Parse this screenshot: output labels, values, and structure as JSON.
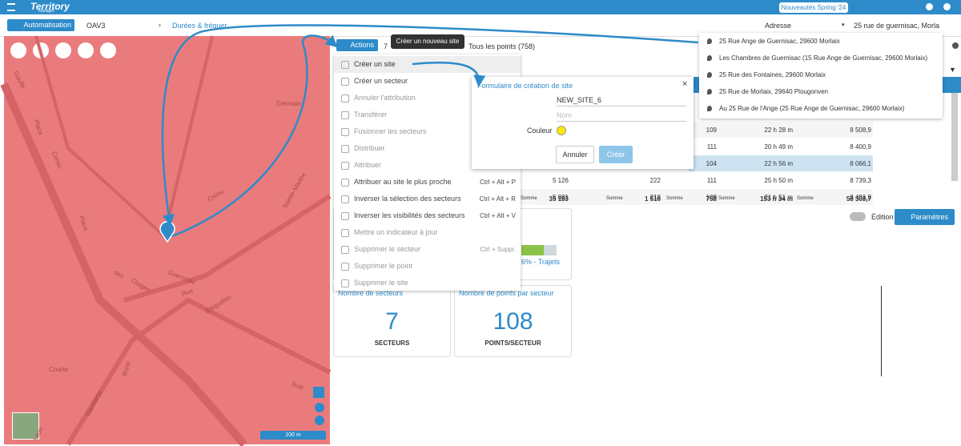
{
  "topbar": {
    "logo": "Territory",
    "logo_sub": "manager",
    "news_button": "Nouveautés Spring '24"
  },
  "toolbar": {
    "automation": "Automatisation",
    "project": "OAV3",
    "breadcrumb": "Durées & fréquer",
    "search_type": "Adresse",
    "search_value": "25 rue de guernisac, Morla"
  },
  "address_suggestions": [
    "25 Rue Ange de Guernisac, 29600 Morlaix",
    "Les Chambres de Guernisac (15 Rue Ange de Guernisac, 29600 Morlaix)",
    "25 Rue des Fontaines, 29600 Morlaix",
    "25 Rue de Morlaix, 29640 Plougonven",
    "Au 25 Rue de l'Ange (25 Rue Ange de Guernisac, 29600 Morlaix)"
  ],
  "map": {
    "labels": [
      "Gaulle",
      "Place",
      "Comic",
      "Place",
      "des",
      "Otages",
      "Rue",
      "d'Aiguillon",
      "Gambetta",
      "Brest",
      "Leon",
      "Germain",
      "Guernisac",
      "Courte",
      "Rue",
      "Creou",
      "Sainte-Marthe"
    ],
    "scale": "100 m"
  },
  "actions": {
    "button": "Actions",
    "count": "7",
    "tooltip": "Créer un nouveau site",
    "tab": "Tous les points (758)",
    "menu": [
      {
        "label": "Créer un site"
      },
      {
        "label": "Créer un secteur"
      },
      {
        "label": "Annuler l'attribution"
      },
      {
        "label": "Transférer"
      },
      {
        "label": "Fusionner les secteurs"
      },
      {
        "label": "Distribuer"
      },
      {
        "label": "Attribuer"
      },
      {
        "label": "Attribuer au site le plus proche",
        "shortcut": "Ctrl + Alt + P"
      },
      {
        "label": "Inverser la sélection des secteurs",
        "shortcut": "Ctrl + Alt + R"
      },
      {
        "label": "Inverser les visibilités des secteurs",
        "shortcut": "Ctrl + Alt + V"
      },
      {
        "label": "Mettre un indicateur à jour"
      },
      {
        "label": "Supprimer le secteur",
        "shortcut": "Ctrl + Suppr."
      },
      {
        "label": "Supprimer le point"
      },
      {
        "label": "Supprimer le site"
      }
    ]
  },
  "dialog": {
    "title": "Formulaire de création de site",
    "site_name": "NEW_SITE_6",
    "name_placeholder": "Nom",
    "color_label": "Couleur",
    "cancel": "Annuler",
    "create": "Créer"
  },
  "table": {
    "rows": [
      [
        "109",
        "22 h 28 m",
        "8 508,9"
      ],
      [
        "111",
        "20 h 49 m",
        "8 400,9"
      ],
      [
        "104",
        "22 h 56 m",
        "8 066,1"
      ],
      [
        "5 126",
        "222",
        "111",
        "25 h 50 m",
        "8 739,3"
      ],
      [
        "5 081",
        "218",
        "109",
        "21 h 51 m",
        "8 481,8"
      ]
    ],
    "total_label": "Somme",
    "totals": [
      "35 183",
      "1 516",
      "758",
      "153 h 34 m",
      "58 308,7"
    ]
  },
  "trajets": "6% - Trajets",
  "cards": [
    {
      "title": "Nombre de secteurs",
      "value": "7",
      "unit": "SECTEURS"
    },
    {
      "title": "Nombre de points par secteur",
      "value": "108",
      "unit": "POINTS/SECTEUR"
    }
  ],
  "edition": "Édition",
  "settings": "Paramètres"
}
